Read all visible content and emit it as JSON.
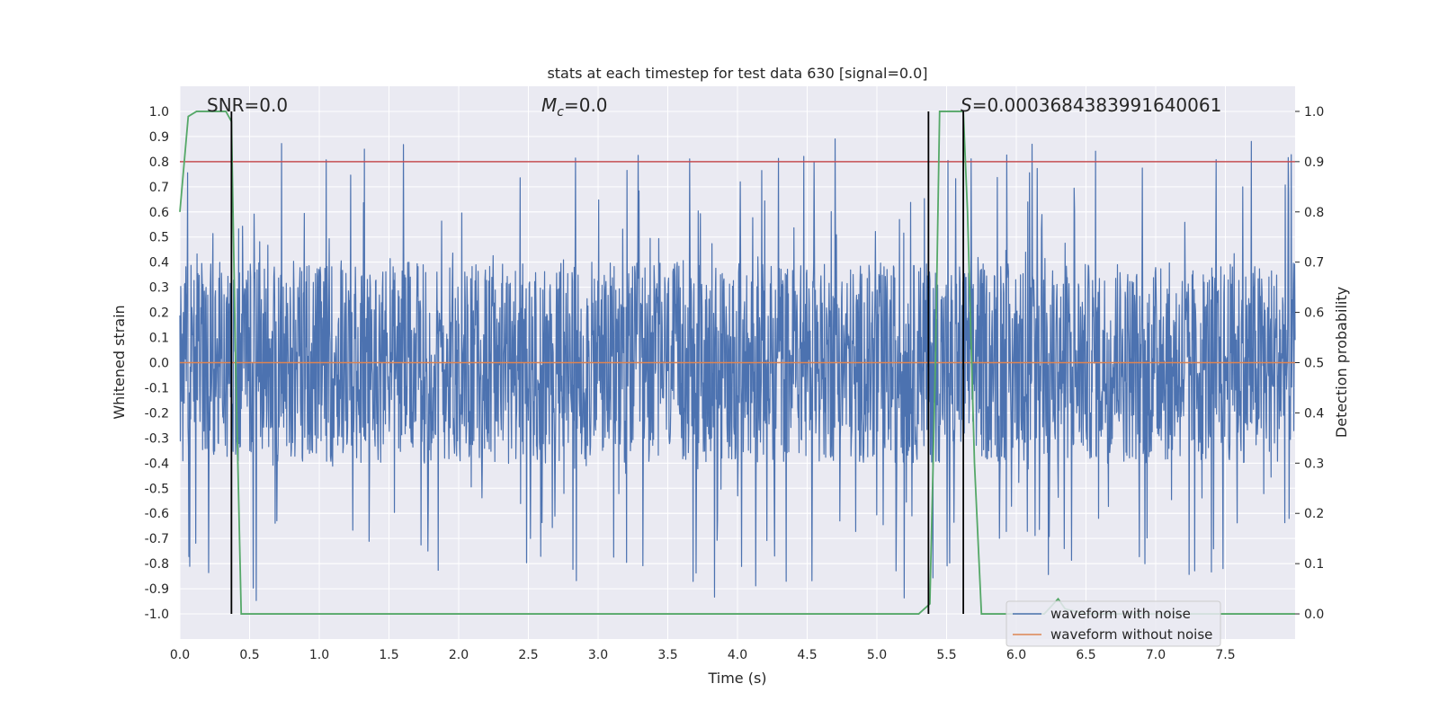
{
  "chart_data": {
    "type": "line",
    "title": "stats at each timestep for test data 630 [signal=0.0]",
    "xlabel": "Time (s)",
    "ylabel": "Whitened strain",
    "y2label": "Detection probability",
    "xlim": [
      0.0,
      8.0
    ],
    "ylim": [
      -1.1,
      1.1
    ],
    "y2lim": [
      -0.05,
      1.05
    ],
    "x_ticks": [
      0.0,
      0.5,
      1.0,
      1.5,
      2.0,
      2.5,
      3.0,
      3.5,
      4.0,
      4.5,
      5.0,
      5.5,
      6.0,
      6.5,
      7.0,
      7.5
    ],
    "x_tick_labels": [
      "0.0",
      "0.5",
      "1.0",
      "1.5",
      "2.0",
      "2.5",
      "3.0",
      "3.5",
      "4.0",
      "4.5",
      "5.0",
      "5.5",
      "6.0",
      "6.5",
      "7.0",
      "7.5"
    ],
    "y_ticks": [
      1.0,
      0.9,
      0.8,
      0.7,
      0.6,
      0.5,
      0.4,
      0.3,
      0.2,
      0.1,
      0.0,
      -0.1,
      -0.2,
      -0.3,
      -0.4,
      -0.5,
      -0.6,
      -0.7,
      -0.8,
      -0.9,
      -1.0
    ],
    "y_tick_labels": [
      "1.0",
      "0.9",
      "0.8",
      "0.7",
      "0.6",
      "0.5",
      "0.4",
      "0.3",
      "0.2",
      "0.1",
      "0.0",
      "-0.1",
      "-0.2",
      "-0.3",
      "-0.4",
      "-0.5",
      "-0.6",
      "-0.7",
      "-0.8",
      "-0.9",
      "-1.0"
    ],
    "y2_ticks": [
      1.0,
      0.9,
      0.8,
      0.7,
      0.6,
      0.5,
      0.4,
      0.3,
      0.2,
      0.1,
      0.0
    ],
    "y2_tick_labels": [
      "1.0",
      "0.9",
      "0.8",
      "0.7",
      "0.6",
      "0.5",
      "0.4",
      "0.3",
      "0.2",
      "0.1",
      "0.0"
    ],
    "grid": true,
    "legend_position": "bottom-right",
    "annotations": {
      "snr": "SNR=0.0",
      "mc_symbol": "M",
      "mc_sub": "c",
      "mc_value": "=0.0",
      "s_symbol": "S",
      "s_value": "=0.0003684383991640061"
    },
    "series": [
      {
        "name": "waveform with noise",
        "color": "#4c72b0",
        "axis": "left",
        "description": "noisy whitened strain, approximately within [-0.95, 0.90]",
        "noise_envelope": {
          "core_low": -0.4,
          "core_high": 0.4,
          "max": 0.9,
          "min": -0.95
        }
      },
      {
        "name": "waveform without noise",
        "color": "#dd8452",
        "axis": "left",
        "x": [
          0.0,
          8.0
        ],
        "values": [
          0.0,
          0.0
        ]
      },
      {
        "name": "detection probability",
        "color": "#55a868",
        "axis": "right",
        "x": [
          0.0,
          0.06,
          0.12,
          0.25,
          0.33,
          0.37,
          0.4,
          0.44,
          0.8,
          1.5,
          2.5,
          3.5,
          4.5,
          5.3,
          5.38,
          5.42,
          5.45,
          5.55,
          5.62,
          5.65,
          5.7,
          5.75,
          5.85,
          6.2,
          6.3,
          6.35,
          6.5,
          7.0,
          7.5,
          8.0
        ],
        "values": [
          0.8,
          0.99,
          1.0,
          1.0,
          1.0,
          0.98,
          0.5,
          0.0,
          0.0,
          0.0,
          0.0,
          0.0,
          0.0,
          0.0,
          0.02,
          0.5,
          1.0,
          1.0,
          1.0,
          0.8,
          0.3,
          0.0,
          0.0,
          0.0,
          0.03,
          0.01,
          0.0,
          0.0,
          0.0,
          0.0
        ]
      }
    ],
    "threshold": {
      "value": 0.9,
      "axis": "right",
      "color": "#c44e52"
    },
    "vlines": [
      0.37,
      5.37,
      5.62
    ],
    "vline_color": "#000000",
    "legend": [
      {
        "label": "waveform with noise",
        "color": "#4c72b0"
      },
      {
        "label": "waveform without noise",
        "color": "#dd8452"
      }
    ]
  }
}
